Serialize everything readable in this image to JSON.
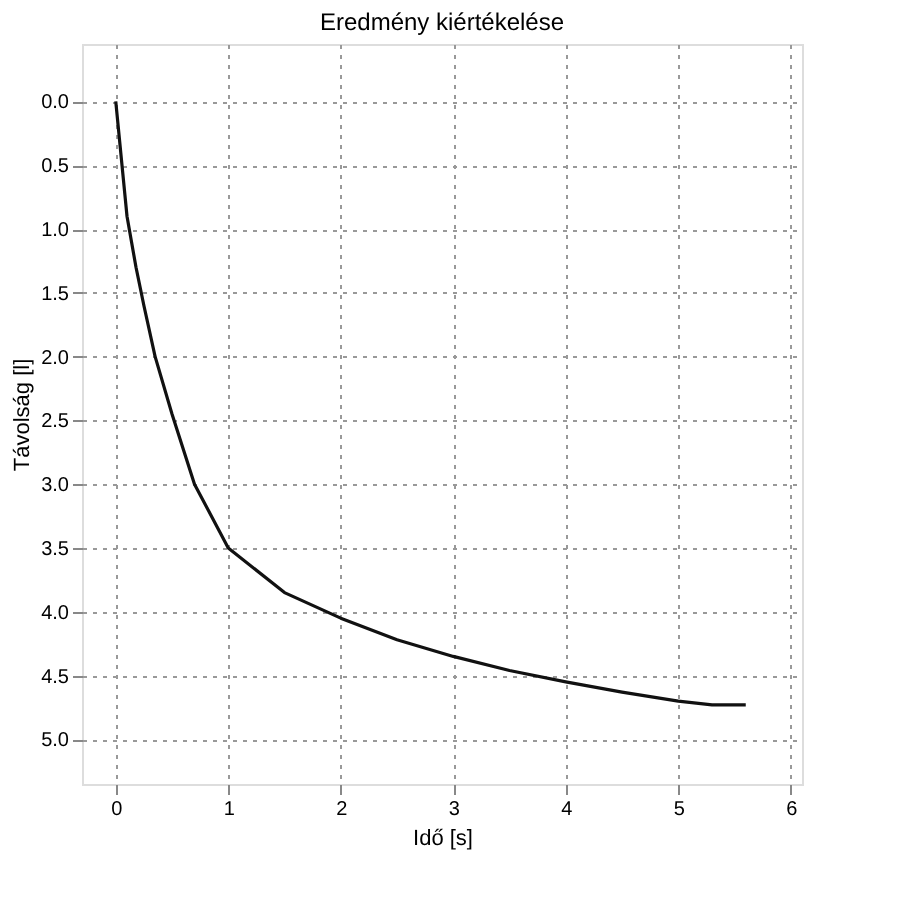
{
  "chart_data": {
    "type": "line",
    "title": "Eredmény kiértékelése",
    "xlabel": "Idő [s]",
    "ylabel": "Távolság [l]",
    "x": [
      0,
      0.05,
      0.1,
      0.18,
      0.25,
      0.35,
      0.5,
      0.7,
      1,
      1.5,
      2,
      2.5,
      3,
      3.5,
      4,
      4.5,
      5,
      5.3,
      5.6
    ],
    "series": [
      {
        "color": "#111111",
        "values": [
          0.0,
          0.45,
          0.9,
          1.3,
          1.6,
          2.0,
          2.45,
          3.0,
          3.5,
          3.85,
          4.05,
          4.22,
          4.35,
          4.46,
          4.55,
          4.63,
          4.7,
          4.73,
          4.73
        ]
      }
    ],
    "xlim": [
      -0.3,
      6.1
    ],
    "xticks": [
      0,
      1,
      2,
      3,
      4,
      5,
      6
    ],
    "ylim": [
      5.35,
      -0.45
    ],
    "yticks": [
      {
        "value": 0,
        "label": "0.0"
      },
      0.5,
      {
        "value": 1,
        "label": "1.0"
      },
      1.5,
      {
        "value": 2,
        "label": "2.0"
      },
      2.5,
      {
        "value": 3,
        "label": "3.0"
      },
      3.5,
      {
        "value": 4,
        "label": "4.0"
      },
      4.5,
      {
        "value": 5,
        "label": "5.0"
      }
    ],
    "grid": true,
    "line_style": "solid",
    "marker": "none"
  }
}
